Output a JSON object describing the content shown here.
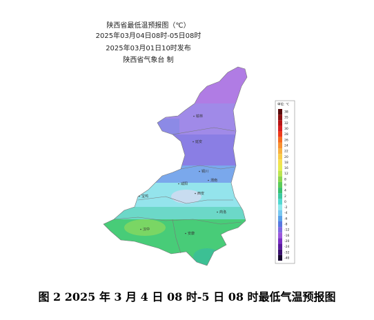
{
  "header": {
    "title": "陕西省最低温预报图（℃）",
    "period": "2025年03月04日08时-05日08时",
    "issued": "2025年03月01日10时发布",
    "agency": "陕西省气象台 制"
  },
  "legend": {
    "title": "单位: ℃",
    "items": [
      {
        "value": 38,
        "color": "#5a0a0a"
      },
      {
        "value": 35,
        "color": "#8c1010"
      },
      {
        "value": 32,
        "color": "#b81414"
      },
      {
        "value": 30,
        "color": "#d81e1e"
      },
      {
        "value": 28,
        "color": "#ee3a1a"
      },
      {
        "value": 26,
        "color": "#f66a1e"
      },
      {
        "value": 24,
        "color": "#f89030"
      },
      {
        "value": 22,
        "color": "#f8b040"
      },
      {
        "value": 20,
        "color": "#f8cc48"
      },
      {
        "value": 18,
        "color": "#f4e050"
      },
      {
        "value": 16,
        "color": "#e4ec50"
      },
      {
        "value": 12,
        "color": "#bce450"
      },
      {
        "value": 8,
        "color": "#8ad650"
      },
      {
        "value": 6,
        "color": "#5ccc58"
      },
      {
        "value": 4,
        "color": "#38c070"
      },
      {
        "value": 2,
        "color": "#3cc8a0"
      },
      {
        "value": 0,
        "color": "#50d8d0"
      },
      {
        "value": -2,
        "color": "#8ee8ec"
      },
      {
        "value": -4,
        "color": "#78c8f0"
      },
      {
        "value": -6,
        "color": "#5aa0e8"
      },
      {
        "value": -8,
        "color": "#5878e0"
      },
      {
        "value": -12,
        "color": "#7e68e0"
      },
      {
        "value": -16,
        "color": "#9a58dc"
      },
      {
        "value": -20,
        "color": "#7a30c4"
      },
      {
        "value": -24,
        "color": "#5a1a9c"
      },
      {
        "value": -32,
        "color": "#3a1070"
      },
      {
        "value": -40,
        "color": "#180830"
      }
    ]
  },
  "cities": [
    {
      "name": "榆林"
    },
    {
      "name": "延安"
    },
    {
      "name": "铜川"
    },
    {
      "name": "渭南"
    },
    {
      "name": "咸阳"
    },
    {
      "name": "西安"
    },
    {
      "name": "宝鸡"
    },
    {
      "name": "汉中"
    },
    {
      "name": "安康"
    },
    {
      "name": "商洛"
    }
  ],
  "caption": "图 2 2025 年 3 月 4 日 08 时-5 日 08 时最低气温预报图"
}
